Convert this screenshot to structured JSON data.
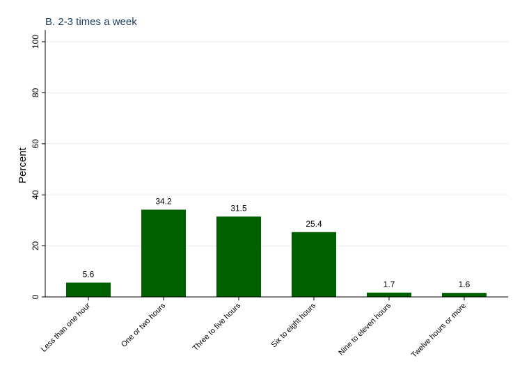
{
  "chart_data": {
    "type": "bar",
    "title": "B. 2-3 times a week",
    "xlabel": "",
    "ylabel": "Percent",
    "categories": [
      "Less than one hour",
      "One or two hours",
      "Three to five hours",
      "Six to eight hours",
      "Nine to eleven hours",
      "Twelve hours or more"
    ],
    "values": [
      5.6,
      34.2,
      31.5,
      25.4,
      1.7,
      1.6
    ],
    "data_labels": [
      "5.6",
      "34.2",
      "31.5",
      "25.4",
      "1.7",
      "1.6"
    ],
    "ylim": [
      0,
      100
    ],
    "yticks": [
      0,
      20,
      40,
      60,
      80,
      100
    ],
    "ytick_labels": [
      "0",
      "20",
      "40",
      "60",
      "80",
      "100"
    ],
    "grid": true,
    "bar_color": "#006000"
  }
}
